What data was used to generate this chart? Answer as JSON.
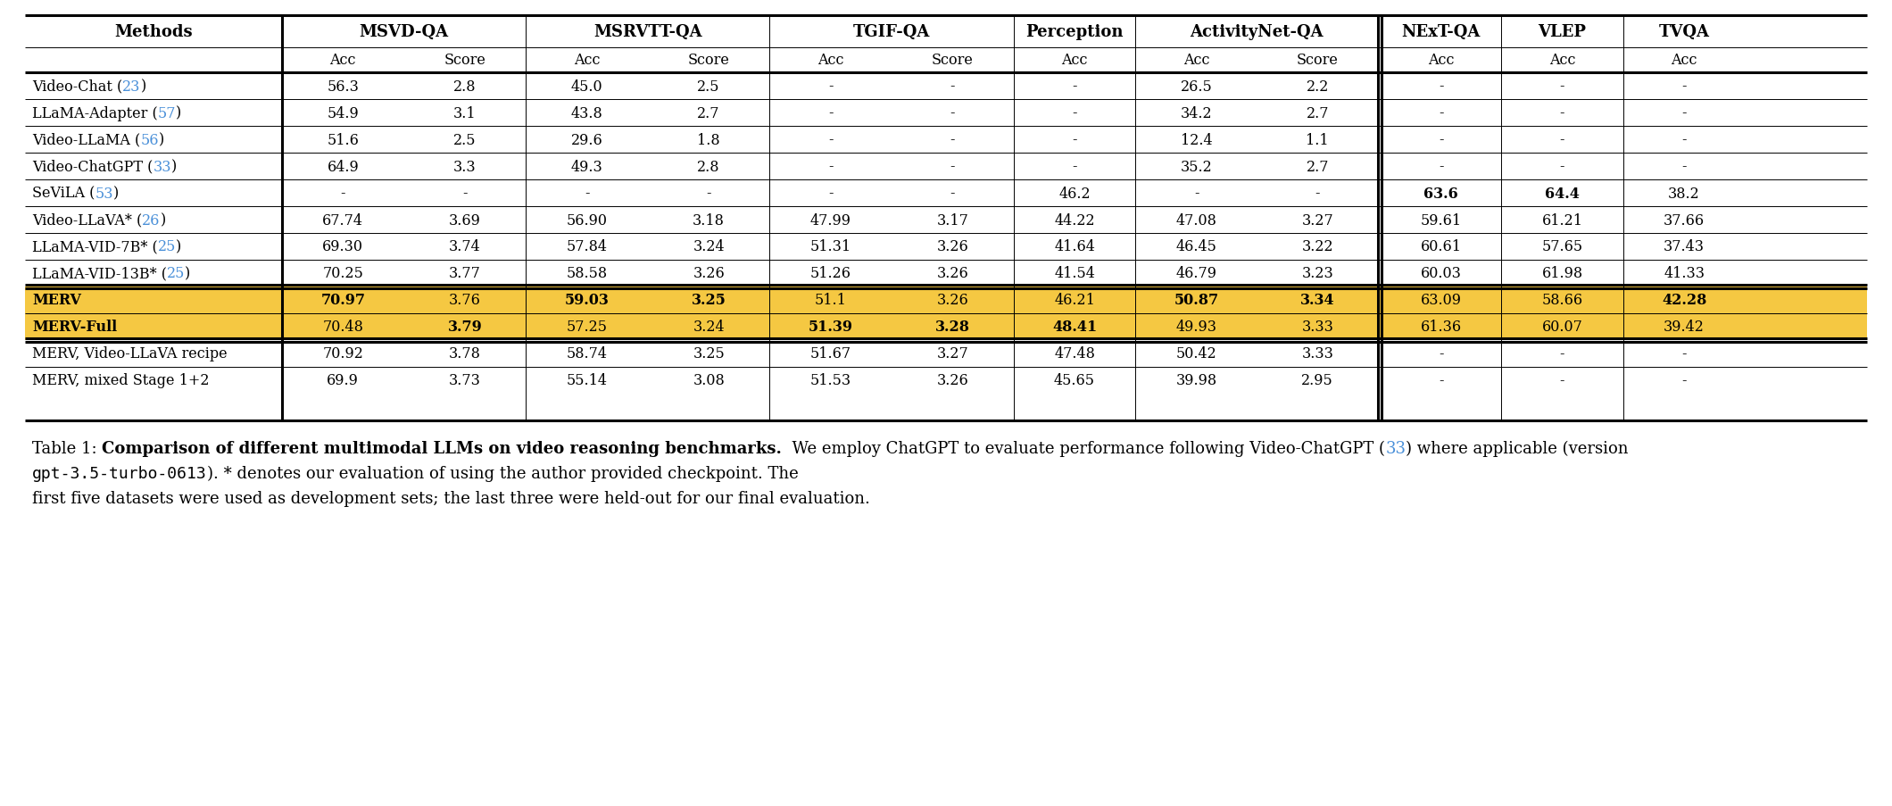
{
  "ref_color": "#4a90d9",
  "highlight_color": "#F5C842",
  "rows": [
    {
      "method": "Video-Chat",
      "ref": "23",
      "msvd_acc": "56.3",
      "msvd_score": "2.8",
      "msrvtt_acc": "45.0",
      "msrvtt_score": "2.5",
      "tgif_acc": "-",
      "tgif_score": "-",
      "percep_acc": "-",
      "actnet_acc": "26.5",
      "actnet_score": "2.2",
      "next_acc": "-",
      "vlep_acc": "-",
      "tvqa_acc": "-",
      "highlight": false,
      "bold_cells": []
    },
    {
      "method": "LLaMA-Adapter",
      "ref": "57",
      "msvd_acc": "54.9",
      "msvd_score": "3.1",
      "msrvtt_acc": "43.8",
      "msrvtt_score": "2.7",
      "tgif_acc": "-",
      "tgif_score": "-",
      "percep_acc": "-",
      "actnet_acc": "34.2",
      "actnet_score": "2.7",
      "next_acc": "-",
      "vlep_acc": "-",
      "tvqa_acc": "-",
      "highlight": false,
      "bold_cells": []
    },
    {
      "method": "Video-LLaMA",
      "ref": "56",
      "msvd_acc": "51.6",
      "msvd_score": "2.5",
      "msrvtt_acc": "29.6",
      "msrvtt_score": "1.8",
      "tgif_acc": "-",
      "tgif_score": "-",
      "percep_acc": "-",
      "actnet_acc": "12.4",
      "actnet_score": "1.1",
      "next_acc": "-",
      "vlep_acc": "-",
      "tvqa_acc": "-",
      "highlight": false,
      "bold_cells": []
    },
    {
      "method": "Video-ChatGPT",
      "ref": "33",
      "msvd_acc": "64.9",
      "msvd_score": "3.3",
      "msrvtt_acc": "49.3",
      "msrvtt_score": "2.8",
      "tgif_acc": "-",
      "tgif_score": "-",
      "percep_acc": "-",
      "actnet_acc": "35.2",
      "actnet_score": "2.7",
      "next_acc": "-",
      "vlep_acc": "-",
      "tvqa_acc": "-",
      "highlight": false,
      "bold_cells": []
    },
    {
      "method": "SeViLA",
      "ref": "53",
      "msvd_acc": "-",
      "msvd_score": "-",
      "msrvtt_acc": "-",
      "msrvtt_score": "-",
      "tgif_acc": "-",
      "tgif_score": "-",
      "percep_acc": "46.2",
      "actnet_acc": "-",
      "actnet_score": "-",
      "next_acc": "63.6",
      "vlep_acc": "64.4",
      "tvqa_acc": "38.2",
      "highlight": false,
      "bold_cells": [
        "next_acc",
        "vlep_acc"
      ]
    },
    {
      "method": "Video-LLaVA*",
      "ref": "26",
      "msvd_acc": "67.74",
      "msvd_score": "3.69",
      "msrvtt_acc": "56.90",
      "msrvtt_score": "3.18",
      "tgif_acc": "47.99",
      "tgif_score": "3.17",
      "percep_acc": "44.22",
      "actnet_acc": "47.08",
      "actnet_score": "3.27",
      "next_acc": "59.61",
      "vlep_acc": "61.21",
      "tvqa_acc": "37.66",
      "highlight": false,
      "bold_cells": []
    },
    {
      "method": "LLaMA-VID-7B*",
      "ref": "25",
      "msvd_acc": "69.30",
      "msvd_score": "3.74",
      "msrvtt_acc": "57.84",
      "msrvtt_score": "3.24",
      "tgif_acc": "51.31",
      "tgif_score": "3.26",
      "percep_acc": "41.64",
      "actnet_acc": "46.45",
      "actnet_score": "3.22",
      "next_acc": "60.61",
      "vlep_acc": "57.65",
      "tvqa_acc": "37.43",
      "highlight": false,
      "bold_cells": []
    },
    {
      "method": "LLaMA-VID-13B*",
      "ref": "25",
      "msvd_acc": "70.25",
      "msvd_score": "3.77",
      "msrvtt_acc": "58.58",
      "msrvtt_score": "3.26",
      "tgif_acc": "51.26",
      "tgif_score": "3.26",
      "percep_acc": "41.54",
      "actnet_acc": "46.79",
      "actnet_score": "3.23",
      "next_acc": "60.03",
      "vlep_acc": "61.98",
      "tvqa_acc": "41.33",
      "highlight": false,
      "bold_cells": []
    },
    {
      "method": "MERV",
      "ref": "",
      "msvd_acc": "70.97",
      "msvd_score": "3.76",
      "msrvtt_acc": "59.03",
      "msrvtt_score": "3.25",
      "tgif_acc": "51.1",
      "tgif_score": "3.26",
      "percep_acc": "46.21",
      "actnet_acc": "50.87",
      "actnet_score": "3.34",
      "next_acc": "63.09",
      "vlep_acc": "58.66",
      "tvqa_acc": "42.28",
      "highlight": true,
      "bold_cells": [
        "msvd_acc",
        "msrvtt_acc",
        "msrvtt_score",
        "actnet_acc",
        "actnet_score",
        "tvqa_acc"
      ]
    },
    {
      "method": "MERV-Full",
      "ref": "",
      "msvd_acc": "70.48",
      "msvd_score": "3.79",
      "msrvtt_acc": "57.25",
      "msrvtt_score": "3.24",
      "tgif_acc": "51.39",
      "tgif_score": "3.28",
      "percep_acc": "48.41",
      "actnet_acc": "49.93",
      "actnet_score": "3.33",
      "next_acc": "61.36",
      "vlep_acc": "60.07",
      "tvqa_acc": "39.42",
      "highlight": true,
      "bold_cells": [
        "msvd_score",
        "tgif_acc",
        "tgif_score",
        "percep_acc"
      ]
    },
    {
      "method": "MERV, Video-LLaVA recipe",
      "ref": "",
      "msvd_acc": "70.92",
      "msvd_score": "3.78",
      "msrvtt_acc": "58.74",
      "msrvtt_score": "3.25",
      "tgif_acc": "51.67",
      "tgif_score": "3.27",
      "percep_acc": "47.48",
      "actnet_acc": "50.42",
      "actnet_score": "3.33",
      "next_acc": "-",
      "vlep_acc": "-",
      "tvqa_acc": "-",
      "highlight": false,
      "bold_cells": []
    },
    {
      "method": "MERV, mixed Stage 1+2",
      "ref": "",
      "msvd_acc": "69.9",
      "msvd_score": "3.73",
      "msrvtt_acc": "55.14",
      "msrvtt_score": "3.08",
      "tgif_acc": "51.53",
      "tgif_score": "3.26",
      "percep_acc": "45.65",
      "actnet_acc": "39.98",
      "actnet_score": "2.95",
      "next_acc": "-",
      "vlep_acc": "-",
      "tvqa_acc": "-",
      "highlight": false,
      "bold_cells": []
    }
  ],
  "col_data_keys": [
    "msvd_acc",
    "msvd_score",
    "msrvtt_acc",
    "msrvtt_score",
    "tgif_acc",
    "tgif_score",
    "percep_acc",
    "actnet_acc",
    "actnet_score",
    "next_acc",
    "vlep_acc",
    "tvqa_acc"
  ],
  "double_sep_before_rows": [
    8,
    10
  ],
  "caption_line1_prefix": "Table 1: ",
  "caption_line1_bold": "Comparison of different multimodal LLMs on video reasoning benchmarks.",
  "caption_line1_cont": "  We employ ChatGPT to evaluate performance following Video-ChatGPT (",
  "caption_line1_ref": "33",
  "caption_line1_end": ") where applicable (version",
  "caption_line2_mono": "gpt-3.5-turbo-0613",
  "caption_line2_cont": "). * denotes our evaluation of using the author provided checkpoint. The",
  "caption_line3": "first five datasets were used as development sets; the last three were held-out for our final evaluation."
}
